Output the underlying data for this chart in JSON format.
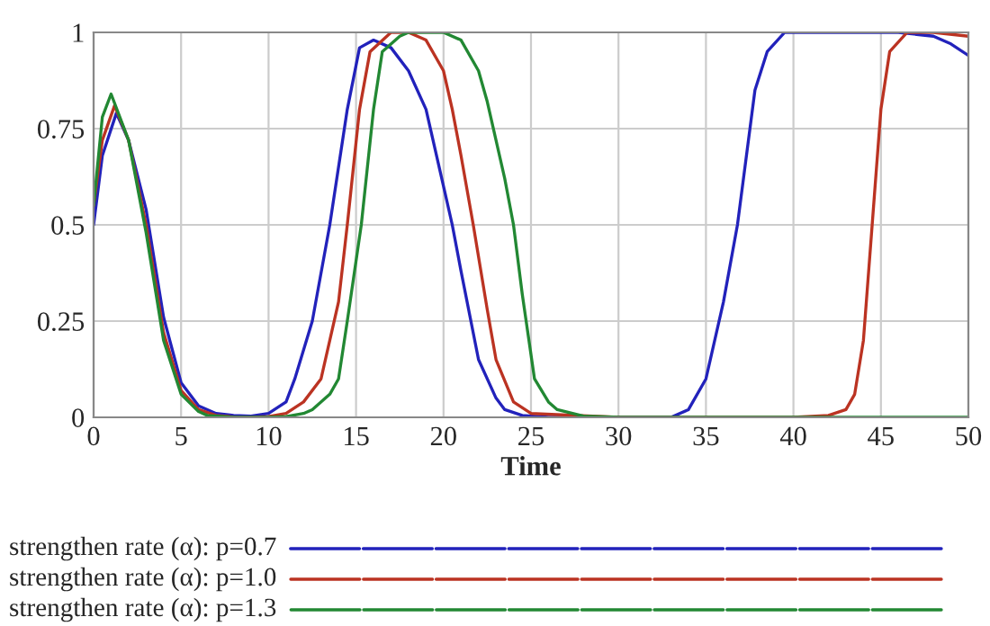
{
  "chart_data": {
    "type": "line",
    "xlabel": "Time",
    "xlim": [
      0,
      50
    ],
    "xticks": [
      0,
      5,
      10,
      15,
      20,
      25,
      30,
      35,
      40,
      45,
      50
    ],
    "ylim": [
      0,
      1
    ],
    "yticks": [
      0,
      0.25,
      0.5,
      0.75,
      1
    ],
    "grid": true,
    "legend": "bottom",
    "line_style": "solid",
    "series": [
      {
        "name": "strengthen rate (α): p=0.7",
        "color": "#2222bb",
        "x": [
          0,
          0.5,
          1.3,
          2,
          3,
          4,
          5,
          6,
          7,
          8,
          9,
          10,
          11,
          11.5,
          12.5,
          13.5,
          14.5,
          15.2,
          16,
          17,
          18,
          19,
          20,
          20.5,
          21,
          22,
          23,
          23.5,
          24.5,
          26,
          30,
          33,
          34,
          35,
          36,
          36.8,
          37.8,
          38.5,
          39.5,
          42,
          46,
          48,
          49,
          50
        ],
        "values": [
          0.5,
          0.68,
          0.79,
          0.72,
          0.54,
          0.26,
          0.09,
          0.03,
          0.01,
          0.005,
          0.003,
          0.01,
          0.04,
          0.1,
          0.25,
          0.5,
          0.8,
          0.96,
          0.98,
          0.96,
          0.9,
          0.8,
          0.6,
          0.5,
          0.38,
          0.15,
          0.05,
          0.02,
          0.005,
          0,
          0,
          0,
          0.02,
          0.1,
          0.3,
          0.5,
          0.85,
          0.95,
          1,
          1,
          1,
          0.99,
          0.97,
          0.94
        ]
      },
      {
        "name": "strengthen rate (α): p=1.0",
        "color": "#bb3322",
        "x": [
          0,
          0.5,
          1.2,
          2,
          3,
          4,
          5,
          6,
          7,
          8,
          9,
          10,
          11,
          12,
          13,
          14,
          14.5,
          15.2,
          15.8,
          17,
          18,
          19,
          20,
          20.5,
          21,
          21.7,
          22.5,
          23,
          24,
          25,
          30,
          40,
          42,
          43,
          43.5,
          44,
          44.5,
          45,
          45.5,
          46.5,
          48,
          50
        ],
        "values": [
          0.55,
          0.72,
          0.81,
          0.72,
          0.5,
          0.22,
          0.07,
          0.02,
          0.005,
          0.001,
          0,
          0.002,
          0.01,
          0.04,
          0.1,
          0.3,
          0.5,
          0.8,
          0.95,
          1,
          1,
          0.98,
          0.9,
          0.8,
          0.68,
          0.5,
          0.28,
          0.15,
          0.04,
          0.01,
          0,
          0,
          0.005,
          0.02,
          0.06,
          0.2,
          0.5,
          0.8,
          0.95,
          1,
          1,
          0.99
        ]
      },
      {
        "name": "strengthen rate (α): p=1.3",
        "color": "#228833",
        "x": [
          0,
          0.5,
          1,
          2,
          3,
          4,
          5,
          6,
          6.5,
          8,
          10,
          11,
          12,
          12.5,
          13.5,
          14,
          14.5,
          15.3,
          16,
          16.5,
          17.5,
          18,
          20,
          21,
          22,
          22.5,
          23.5,
          24,
          24.5,
          25.2,
          26,
          26.5,
          28,
          30,
          40,
          50
        ],
        "values": [
          0.55,
          0.78,
          0.84,
          0.72,
          0.48,
          0.2,
          0.06,
          0.015,
          0.005,
          0,
          0,
          0.002,
          0.01,
          0.02,
          0.06,
          0.1,
          0.25,
          0.5,
          0.8,
          0.95,
          0.99,
          1,
          1,
          0.98,
          0.9,
          0.82,
          0.62,
          0.5,
          0.32,
          0.1,
          0.04,
          0.02,
          0.003,
          0,
          0,
          0
        ]
      }
    ]
  }
}
